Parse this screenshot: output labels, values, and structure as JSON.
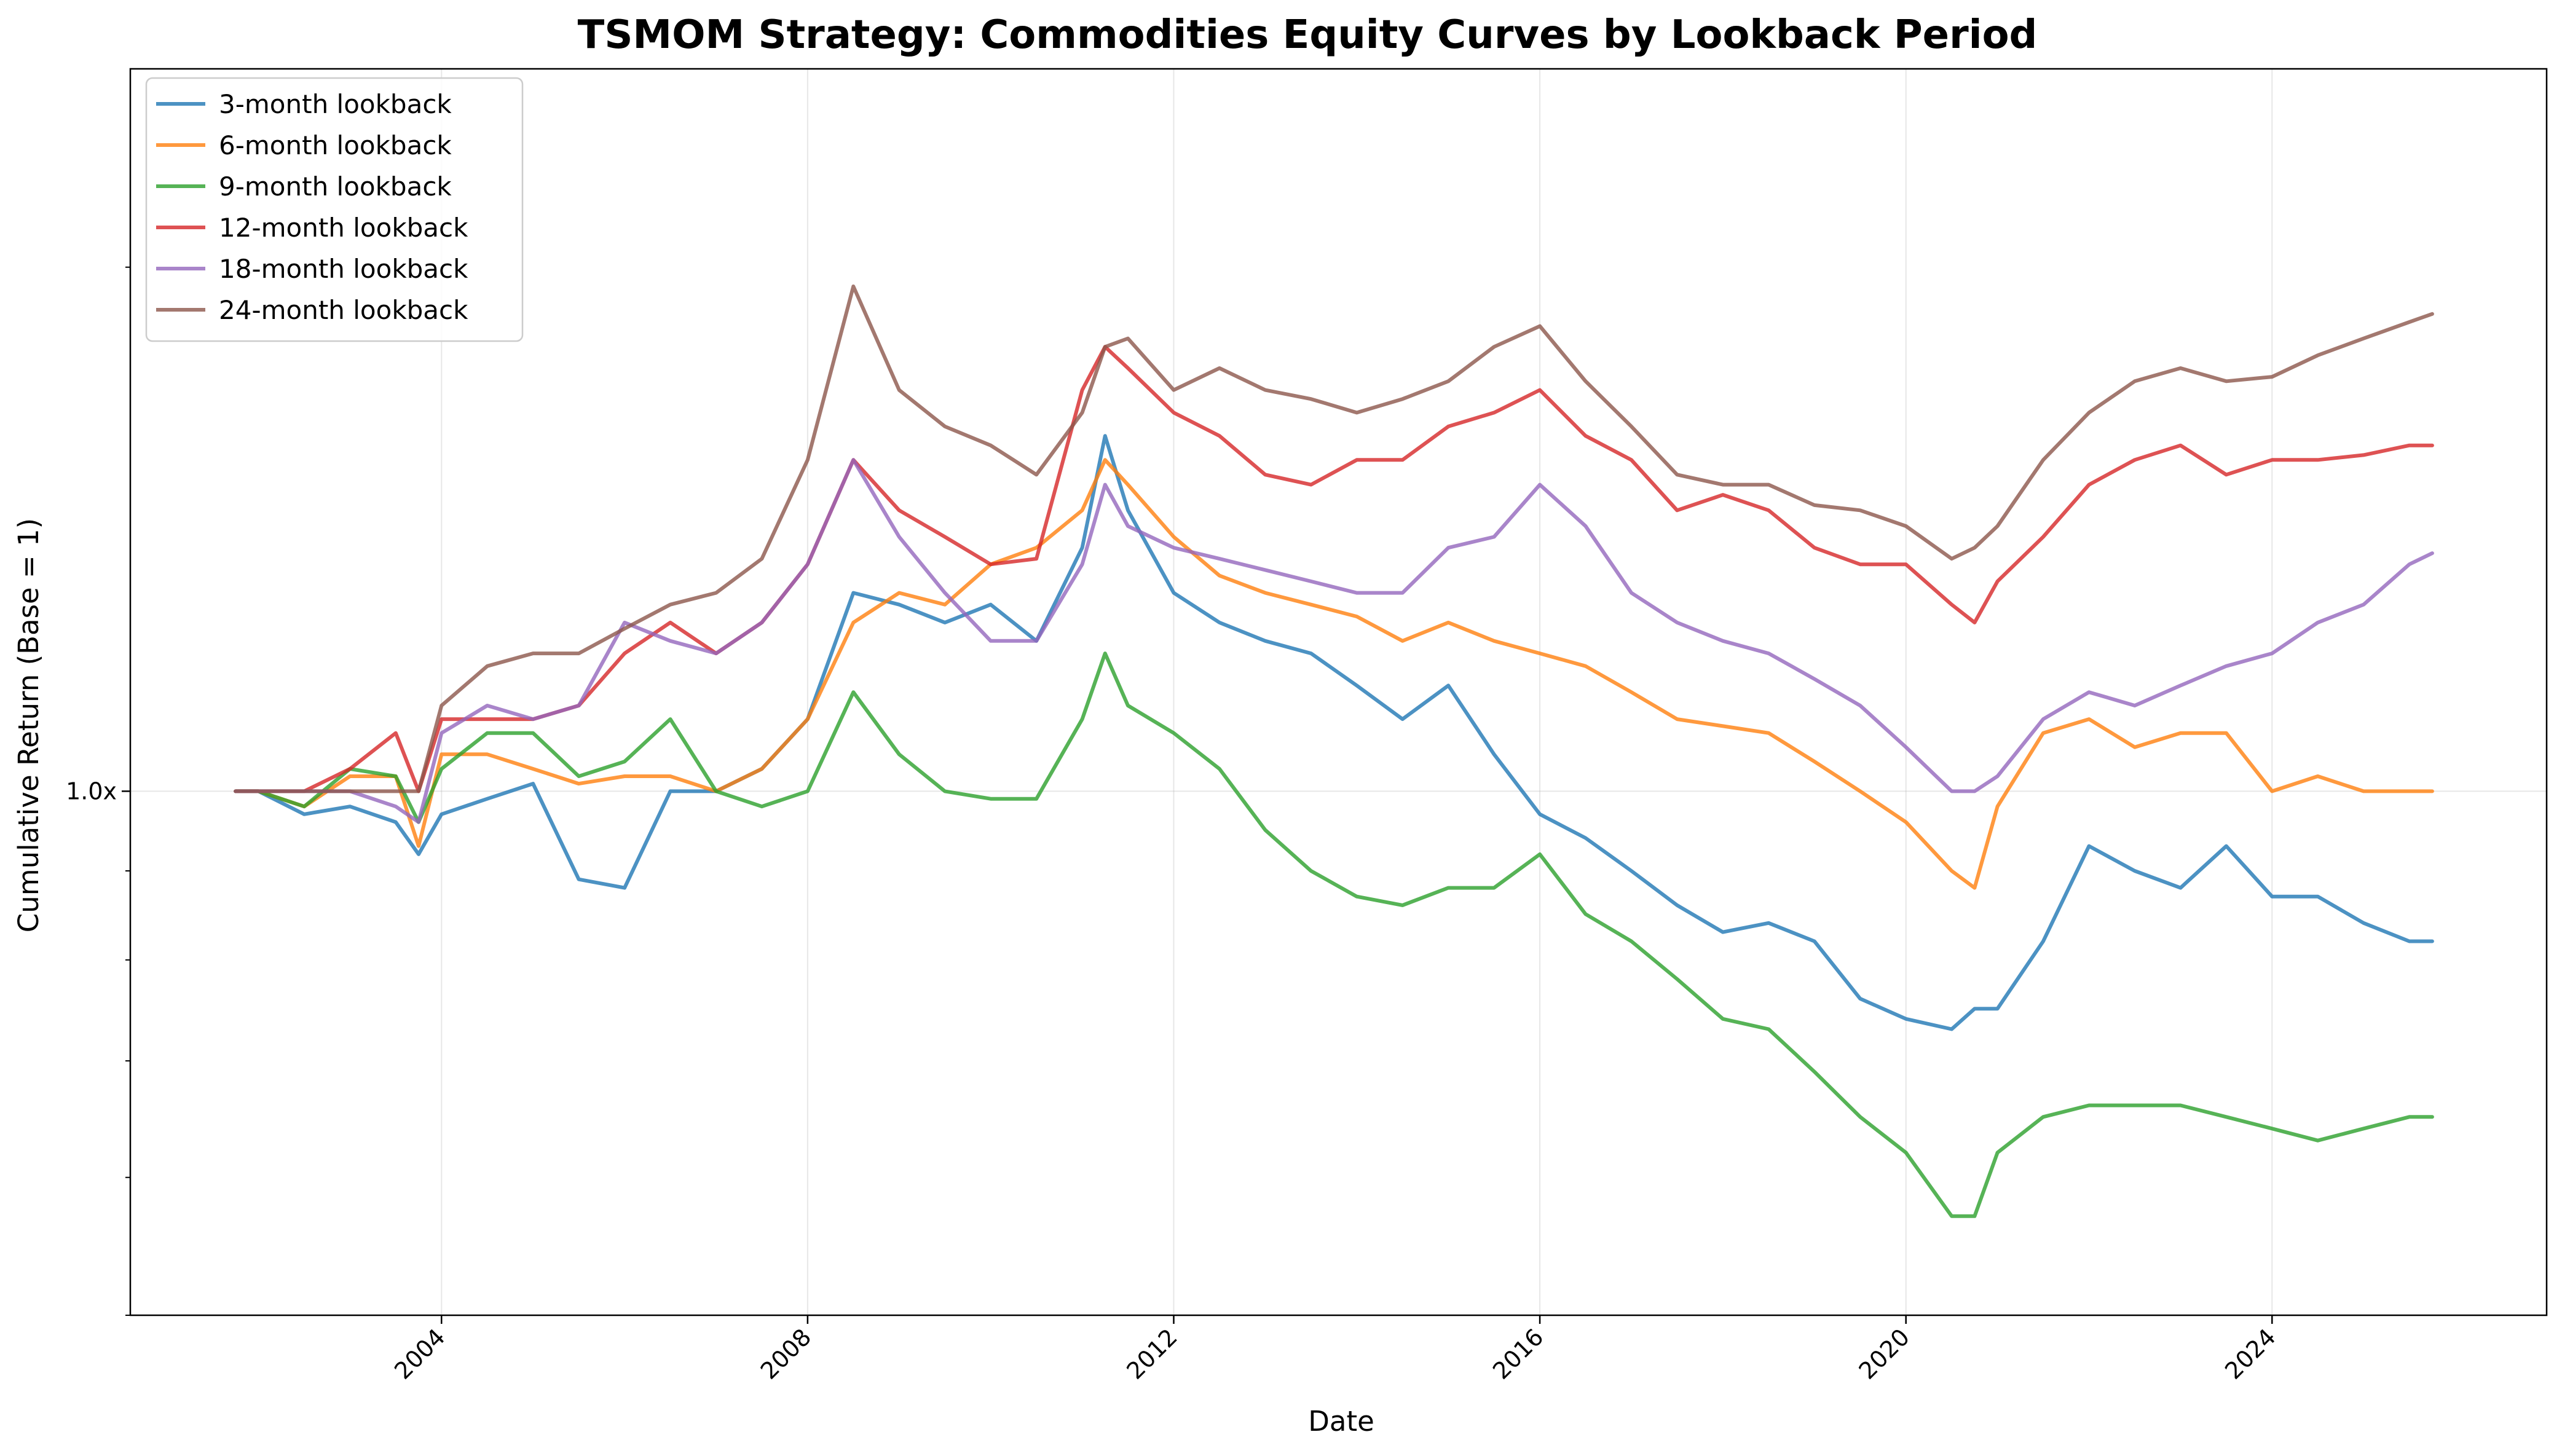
{
  "chart_data": {
    "type": "line",
    "title": "TSMOM Strategy: Commodities Equity Curves by Lookback Period",
    "xlabel": "Date",
    "ylabel": "Cumulative Return (Base = 1)",
    "y_scale": "log",
    "xlim": [
      2000.6,
      2027.0
    ],
    "ylim": [
      0.5,
      2.6
    ],
    "x_ticks": [
      2004,
      2008,
      2012,
      2016,
      2020,
      2024
    ],
    "x_tick_labels": [
      "2004",
      "2008",
      "2012",
      "2016",
      "2020",
      "2024"
    ],
    "y_ticks": [
      1.0
    ],
    "y_tick_labels": [
      "1.0x"
    ],
    "grid": true,
    "legend_position": "upper-left",
    "x": [
      2001.75,
      2002.0,
      2002.5,
      2003.0,
      2003.5,
      2003.75,
      2004.0,
      2004.5,
      2005.0,
      2005.5,
      2006.0,
      2006.5,
      2007.0,
      2007.5,
      2008.0,
      2008.5,
      2009.0,
      2009.5,
      2010.0,
      2010.5,
      2011.0,
      2011.25,
      2011.5,
      2012.0,
      2012.5,
      2013.0,
      2013.5,
      2014.0,
      2014.5,
      2015.0,
      2015.5,
      2016.0,
      2016.5,
      2017.0,
      2017.5,
      2018.0,
      2018.5,
      2019.0,
      2019.5,
      2020.0,
      2020.5,
      2020.75,
      2021.0,
      2021.5,
      2022.0,
      2022.5,
      2023.0,
      2023.5,
      2024.0,
      2024.5,
      2025.0,
      2025.5,
      2025.75
    ],
    "series": [
      {
        "name": "3-month lookback",
        "color": "#1f77b4",
        "values": [
          1.0,
          1.0,
          0.97,
          0.98,
          0.96,
          0.92,
          0.97,
          0.99,
          1.01,
          0.89,
          0.88,
          1.0,
          1.0,
          1.03,
          1.1,
          1.3,
          1.28,
          1.25,
          1.28,
          1.22,
          1.38,
          1.6,
          1.45,
          1.3,
          1.25,
          1.22,
          1.2,
          1.15,
          1.1,
          1.15,
          1.05,
          0.97,
          0.94,
          0.9,
          0.86,
          0.83,
          0.84,
          0.82,
          0.76,
          0.74,
          0.73,
          0.75,
          0.75,
          0.82,
          0.93,
          0.9,
          0.88,
          0.93,
          0.87,
          0.87,
          0.84,
          0.82,
          0.82
        ]
      },
      {
        "name": "6-month lookback",
        "color": "#ff7f0e",
        "values": [
          1.0,
          1.0,
          0.98,
          1.02,
          1.02,
          0.93,
          1.05,
          1.05,
          1.03,
          1.01,
          1.02,
          1.02,
          1.0,
          1.03,
          1.1,
          1.25,
          1.3,
          1.28,
          1.35,
          1.38,
          1.45,
          1.55,
          1.5,
          1.4,
          1.33,
          1.3,
          1.28,
          1.26,
          1.22,
          1.25,
          1.22,
          1.2,
          1.18,
          1.14,
          1.1,
          1.09,
          1.08,
          1.04,
          1.0,
          0.96,
          0.9,
          0.88,
          0.98,
          1.08,
          1.1,
          1.06,
          1.08,
          1.08,
          1.0,
          1.02,
          1.0,
          1.0,
          1.0
        ]
      },
      {
        "name": "9-month lookback",
        "color": "#2ca02c",
        "values": [
          1.0,
          1.0,
          0.98,
          1.03,
          1.02,
          0.96,
          1.03,
          1.08,
          1.08,
          1.02,
          1.04,
          1.1,
          1.0,
          0.98,
          1.0,
          1.14,
          1.05,
          1.0,
          0.99,
          0.99,
          1.1,
          1.2,
          1.12,
          1.08,
          1.03,
          0.95,
          0.9,
          0.87,
          0.86,
          0.88,
          0.88,
          0.92,
          0.85,
          0.82,
          0.78,
          0.74,
          0.73,
          0.69,
          0.65,
          0.62,
          0.57,
          0.57,
          0.62,
          0.65,
          0.66,
          0.66,
          0.66,
          0.65,
          0.64,
          0.63,
          0.64,
          0.65,
          0.65
        ]
      },
      {
        "name": "12-month lookback",
        "color": "#d62728",
        "values": [
          1.0,
          1.0,
          1.0,
          1.03,
          1.08,
          1.0,
          1.1,
          1.1,
          1.1,
          1.12,
          1.2,
          1.25,
          1.2,
          1.25,
          1.35,
          1.55,
          1.45,
          1.4,
          1.35,
          1.36,
          1.7,
          1.8,
          1.75,
          1.65,
          1.6,
          1.52,
          1.5,
          1.55,
          1.55,
          1.62,
          1.65,
          1.7,
          1.6,
          1.55,
          1.45,
          1.48,
          1.45,
          1.38,
          1.35,
          1.35,
          1.28,
          1.25,
          1.32,
          1.4,
          1.5,
          1.55,
          1.58,
          1.52,
          1.55,
          1.55,
          1.56,
          1.58,
          1.58
        ]
      },
      {
        "name": "18-month lookback",
        "color": "#9467bd",
        "values": [
          1.0,
          1.0,
          1.0,
          1.0,
          0.98,
          0.96,
          1.08,
          1.12,
          1.1,
          1.12,
          1.25,
          1.22,
          1.2,
          1.25,
          1.35,
          1.55,
          1.4,
          1.3,
          1.22,
          1.22,
          1.35,
          1.5,
          1.42,
          1.38,
          1.36,
          1.34,
          1.32,
          1.3,
          1.3,
          1.38,
          1.4,
          1.5,
          1.42,
          1.3,
          1.25,
          1.22,
          1.2,
          1.16,
          1.12,
          1.06,
          1.0,
          1.0,
          1.02,
          1.1,
          1.14,
          1.12,
          1.15,
          1.18,
          1.2,
          1.25,
          1.28,
          1.35,
          1.37
        ]
      },
      {
        "name": "24-month lookback",
        "color": "#8c564b",
        "values": [
          1.0,
          1.0,
          1.0,
          1.0,
          1.0,
          1.0,
          1.12,
          1.18,
          1.2,
          1.2,
          1.24,
          1.28,
          1.3,
          1.36,
          1.55,
          1.95,
          1.7,
          1.62,
          1.58,
          1.52,
          1.65,
          1.8,
          1.82,
          1.7,
          1.75,
          1.7,
          1.68,
          1.65,
          1.68,
          1.72,
          1.8,
          1.85,
          1.72,
          1.62,
          1.52,
          1.5,
          1.5,
          1.46,
          1.45,
          1.42,
          1.36,
          1.38,
          1.42,
          1.55,
          1.65,
          1.72,
          1.75,
          1.72,
          1.73,
          1.78,
          1.82,
          1.86,
          1.88
        ]
      }
    ]
  }
}
